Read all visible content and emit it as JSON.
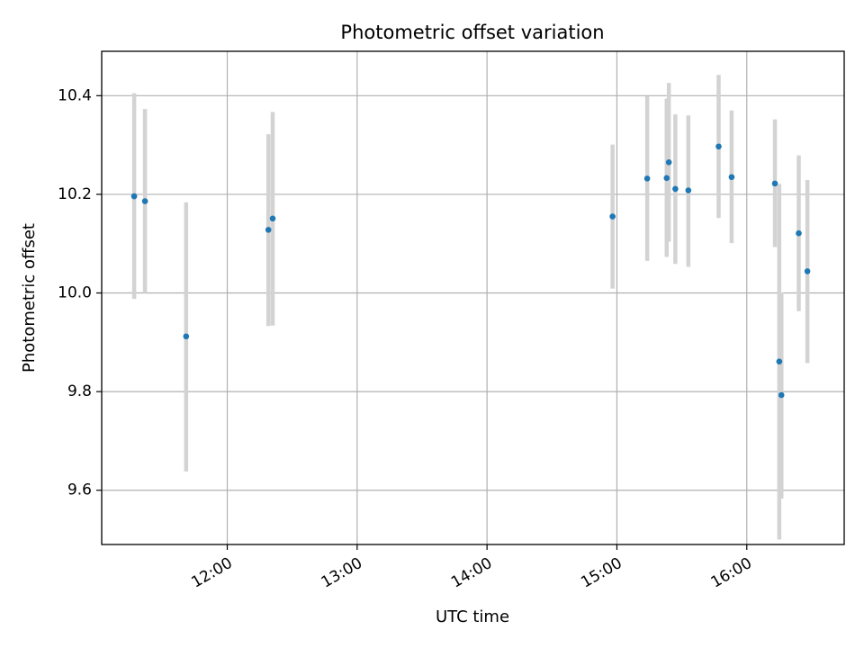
{
  "chart_data": {
    "type": "scatter",
    "title": "Photometric offset variation",
    "xlabel": "UTC time",
    "ylabel": "Photometric offset",
    "xlim": [
      "11:02",
      "16:45"
    ],
    "ylim": [
      9.49,
      10.49
    ],
    "x_ticks": [
      "12:00",
      "13:00",
      "14:00",
      "15:00",
      "16:00"
    ],
    "y_ticks": [
      "9.6",
      "9.8",
      "10.0",
      "10.2",
      "10.4"
    ],
    "grid": true,
    "errorbar_color": "#d3d3d3",
    "marker_color": "#1f77b4",
    "points": [
      {
        "time": "11:17",
        "y": 10.196,
        "ylow": 9.988,
        "yhigh": 10.405
      },
      {
        "time": "11:22",
        "y": 10.186,
        "ylow": 10.0,
        "yhigh": 10.373
      },
      {
        "time": "11:41",
        "y": 9.912,
        "ylow": 9.638,
        "yhigh": 10.184
      },
      {
        "time": "12:19",
        "y": 10.128,
        "ylow": 9.933,
        "yhigh": 10.322
      },
      {
        "time": "12:21",
        "y": 10.151,
        "ylow": 9.934,
        "yhigh": 10.367
      },
      {
        "time": "14:58",
        "y": 10.155,
        "ylow": 10.009,
        "yhigh": 10.301
      },
      {
        "time": "15:14",
        "y": 10.232,
        "ylow": 10.065,
        "yhigh": 10.399
      },
      {
        "time": "15:23",
        "y": 10.233,
        "ylow": 10.073,
        "yhigh": 10.394
      },
      {
        "time": "15:24",
        "y": 10.265,
        "ylow": 10.104,
        "yhigh": 10.426
      },
      {
        "time": "15:27",
        "y": 10.211,
        "ylow": 10.059,
        "yhigh": 10.362
      },
      {
        "time": "15:33",
        "y": 10.208,
        "ylow": 10.053,
        "yhigh": 10.36
      },
      {
        "time": "15:47",
        "y": 10.297,
        "ylow": 10.152,
        "yhigh": 10.442
      },
      {
        "time": "15:53",
        "y": 10.235,
        "ylow": 10.101,
        "yhigh": 10.37
      },
      {
        "time": "16:13",
        "y": 10.222,
        "ylow": 10.093,
        "yhigh": 10.352
      },
      {
        "time": "16:15",
        "y": 9.861,
        "ylow": 9.5,
        "yhigh": 10.221
      },
      {
        "time": "16:16",
        "y": 9.793,
        "ylow": 9.583,
        "yhigh": 10.001
      },
      {
        "time": "16:24",
        "y": 10.121,
        "ylow": 9.963,
        "yhigh": 10.279
      },
      {
        "time": "16:28",
        "y": 10.044,
        "ylow": 9.858,
        "yhigh": 10.229
      }
    ]
  }
}
